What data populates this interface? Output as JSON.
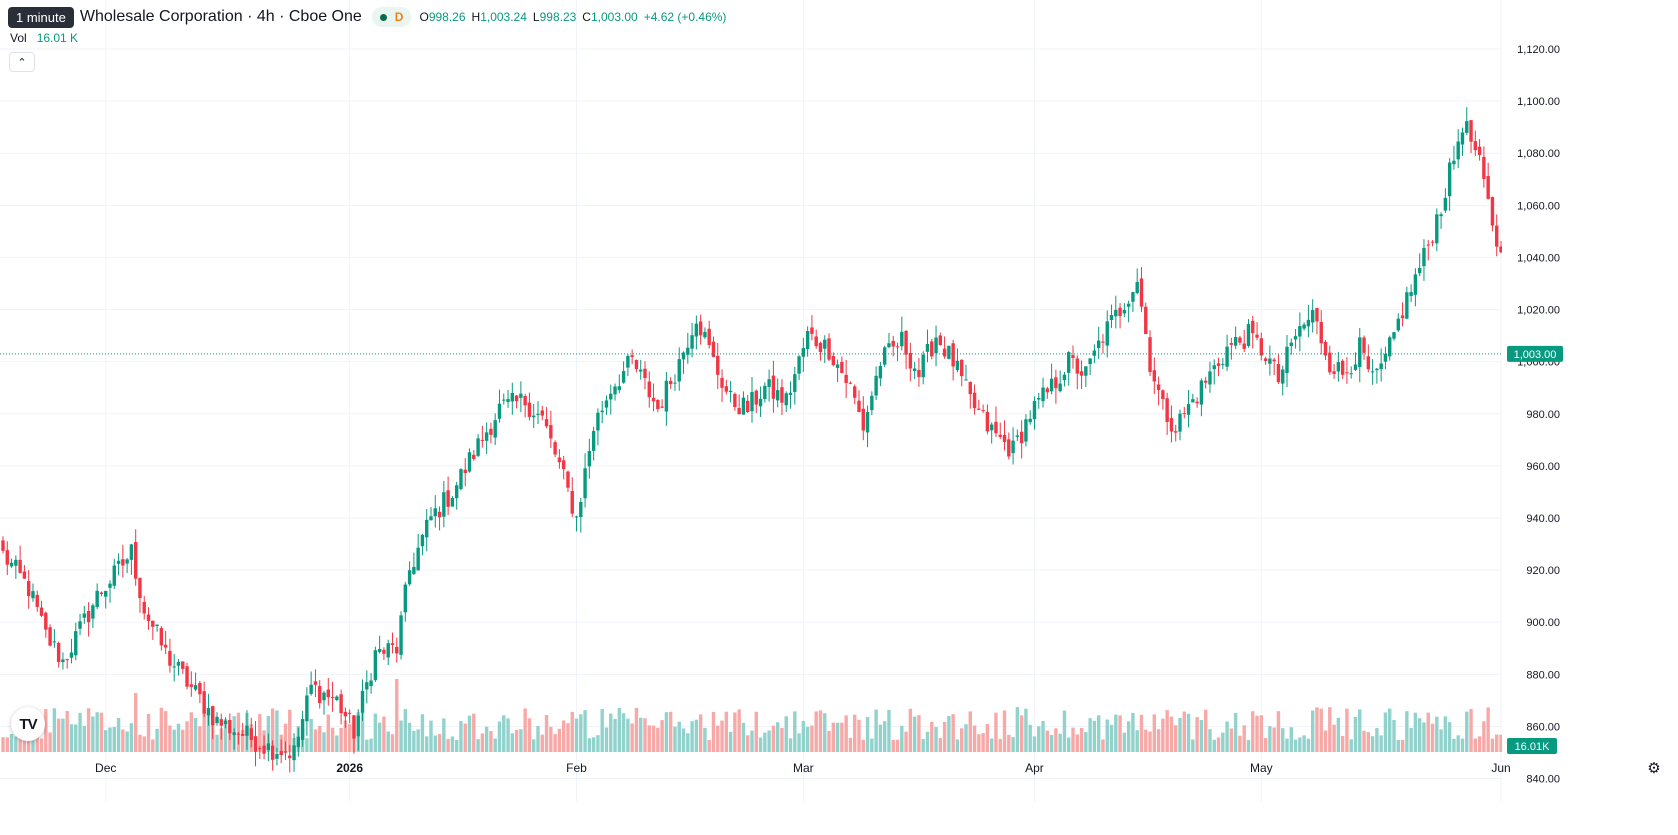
{
  "header": {
    "interval_badge": "1 minute",
    "symbol_title": "Wholesale Corporation · 4h · Cboe One",
    "d_badge": "D",
    "ohlc": {
      "o_label": "O",
      "o_value": "998.26",
      "h_label": "H",
      "h_value": "1,003.24",
      "l_label": "L",
      "l_value": "998.23",
      "c_label": "C",
      "c_value": "1,003.00",
      "change": "+4.62 (+0.46%)"
    },
    "vol_label": "Vol",
    "vol_value": "16.01 K"
  },
  "icons": {
    "collapse": "chevron-up-icon",
    "logo": "tradingview-logo",
    "logo_text": "TV",
    "settings": "gear-icon"
  },
  "colors": {
    "up": "#089981",
    "down": "#f23645",
    "up_volume": "#92d2cc",
    "down_volume": "#f7a9a7",
    "grid": "#f0f3fa",
    "axis_text": "#131722"
  },
  "chart_data": {
    "type": "candlestick",
    "y_axis": {
      "ticks": [
        840,
        860,
        880,
        900,
        920,
        940,
        960,
        980,
        1000,
        1020,
        1040,
        1060,
        1080,
        1100,
        1120
      ],
      "tick_labels": [
        "840.00",
        "860.00",
        "880.00",
        "900.00",
        "920.00",
        "940.00",
        "960.00",
        "980.00",
        "1,000.00",
        "1,020.00",
        "1,040.00",
        "1,060.00",
        "1,080.00",
        "1,100.00",
        "1,120.00"
      ],
      "range": [
        831,
        1125
      ]
    },
    "x_axis": {
      "labels": [
        "Dec",
        "2026",
        "Feb",
        "Mar",
        "Apr",
        "May",
        "Jun"
      ],
      "label_index": [
        24,
        81,
        134,
        187,
        241,
        294,
        350
      ]
    },
    "last_price": 1003.0,
    "last_price_label": "1,003.00",
    "last_volume_label": "16.01K",
    "anchors": [
      [
        0,
        926
      ],
      [
        6,
        913
      ],
      [
        10,
        895
      ],
      [
        14,
        885
      ],
      [
        18,
        897
      ],
      [
        22,
        910
      ],
      [
        26,
        918
      ],
      [
        30,
        927
      ],
      [
        33,
        905
      ],
      [
        38,
        888
      ],
      [
        43,
        877
      ],
      [
        50,
        862
      ],
      [
        55,
        858
      ],
      [
        62,
        852
      ],
      [
        68,
        850
      ],
      [
        72,
        875
      ],
      [
        78,
        870
      ],
      [
        82,
        858
      ],
      [
        87,
        888
      ],
      [
        92,
        890
      ],
      [
        95,
        920
      ],
      [
        100,
        940
      ],
      [
        105,
        950
      ],
      [
        110,
        965
      ],
      [
        116,
        982
      ],
      [
        122,
        985
      ],
      [
        126,
        978
      ],
      [
        130,
        960
      ],
      [
        134,
        940
      ],
      [
        138,
        975
      ],
      [
        142,
        990
      ],
      [
        147,
        1000
      ],
      [
        153,
        982
      ],
      [
        158,
        1000
      ],
      [
        162,
        1018
      ],
      [
        166,
        1000
      ],
      [
        170,
        985
      ],
      [
        174,
        982
      ],
      [
        178,
        990
      ],
      [
        183,
        985
      ],
      [
        188,
        1010
      ],
      [
        193,
        1005
      ],
      [
        198,
        990
      ],
      [
        201,
        975
      ],
      [
        205,
        1000
      ],
      [
        210,
        1008
      ],
      [
        214,
        995
      ],
      [
        218,
        1010
      ],
      [
        222,
        1000
      ],
      [
        226,
        985
      ],
      [
        230,
        975
      ],
      [
        233,
        970
      ],
      [
        236,
        966
      ],
      [
        240,
        980
      ],
      [
        245,
        990
      ],
      [
        249,
        1000
      ],
      [
        253,
        995
      ],
      [
        257,
        1010
      ],
      [
        261,
        1020
      ],
      [
        265,
        1032
      ],
      [
        268,
        1000
      ],
      [
        271,
        982
      ],
      [
        274,
        975
      ],
      [
        278,
        985
      ],
      [
        282,
        995
      ],
      [
        286,
        1005
      ],
      [
        291,
        1010
      ],
      [
        295,
        1003
      ],
      [
        298,
        993
      ],
      [
        302,
        1010
      ],
      [
        306,
        1018
      ],
      [
        310,
        1000
      ],
      [
        313,
        995
      ],
      [
        317,
        1005
      ],
      [
        320,
        992
      ],
      [
        323,
        1000
      ],
      [
        327,
        1020
      ],
      [
        332,
        1040
      ],
      [
        336,
        1060
      ],
      [
        339,
        1078
      ],
      [
        341,
        1092
      ],
      [
        343,
        1085
      ],
      [
        345,
        1075
      ],
      [
        347,
        1060
      ],
      [
        350,
        1040
      ],
      [
        353,
        1025
      ],
      [
        355,
        998
      ],
      [
        356,
        1003
      ]
    ],
    "volume_label_range": [
      0,
      30
    ]
  }
}
